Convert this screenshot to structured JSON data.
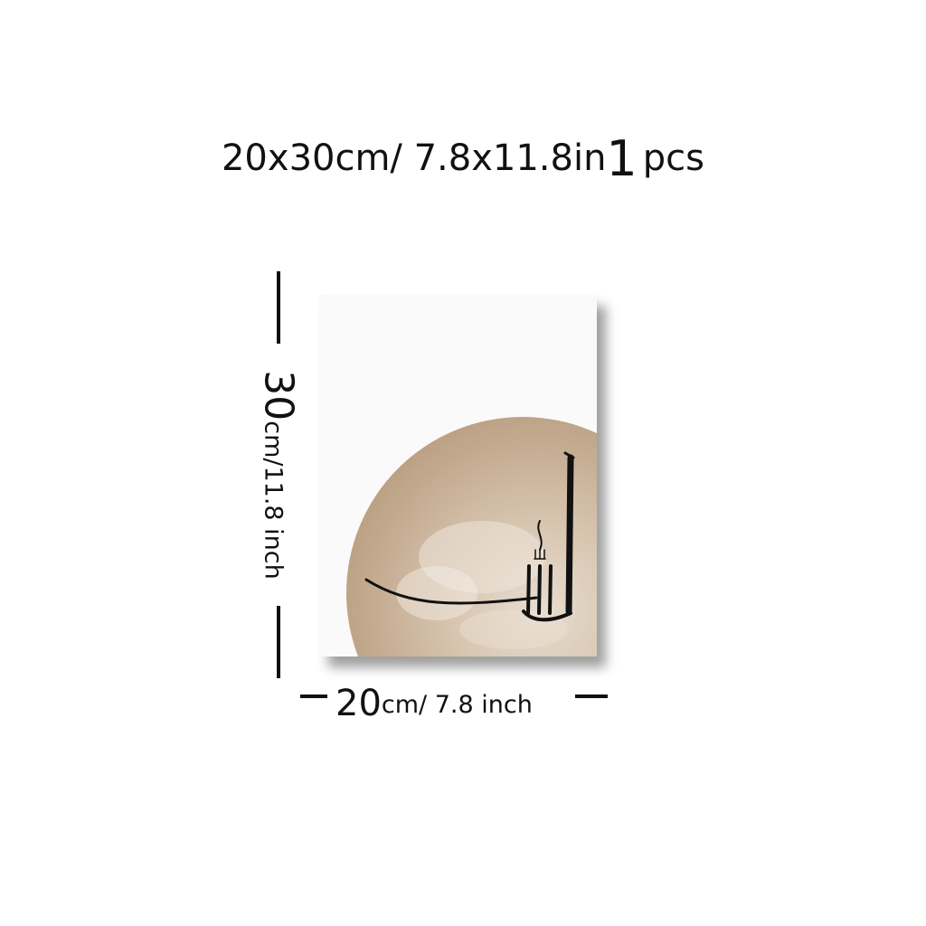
{
  "headline": {
    "size_prefix": "20",
    "size_mid": "x30cm/ 7.8x11.8in",
    "count_number": "1",
    "count_unit": "pcs"
  },
  "dimensions": {
    "height": {
      "number": "30",
      "unit": "cm/11.8 inch"
    },
    "width": {
      "number": "20",
      "unit": "cm/ 7.8 inch"
    }
  },
  "poster": {
    "background_color": "#fafafa",
    "circle_color": "#c9b299",
    "ink_color": "#111111"
  }
}
